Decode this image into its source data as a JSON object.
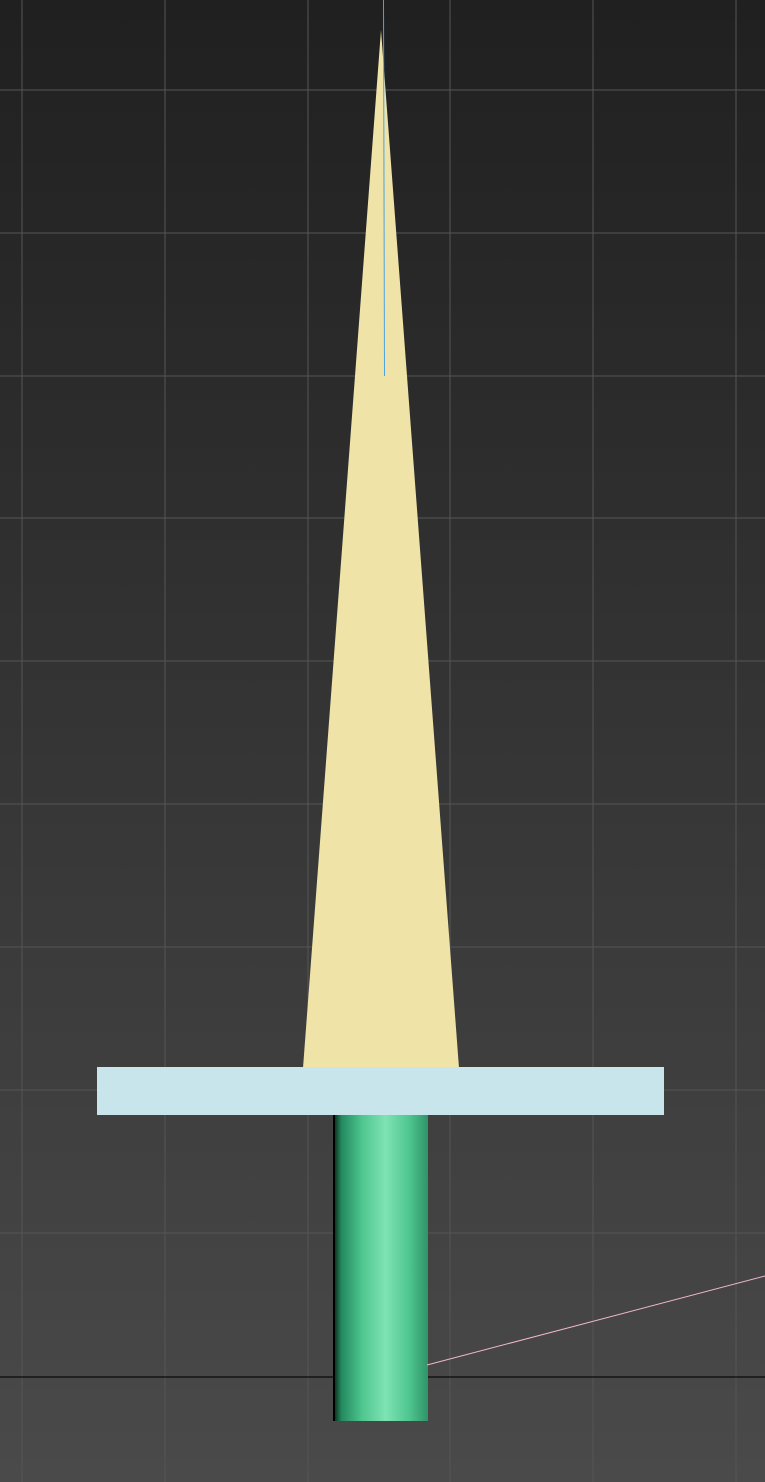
{
  "viewport": {
    "background": {
      "top": "#202020",
      "bottom": "#4a4a4a"
    },
    "grid_color": "#555555",
    "horizon_color": "#0a0a0a",
    "selection_line_color": "#f0b6d0",
    "pivot_line_color": "#4aa3df"
  },
  "objects": [
    {
      "name": "blade",
      "shape": "triangle",
      "color": "#efe3a8"
    },
    {
      "name": "crossguard",
      "shape": "box",
      "color": "#c8e5ec"
    },
    {
      "name": "handle",
      "shape": "cylinder",
      "color": "#5fd39c"
    }
  ]
}
